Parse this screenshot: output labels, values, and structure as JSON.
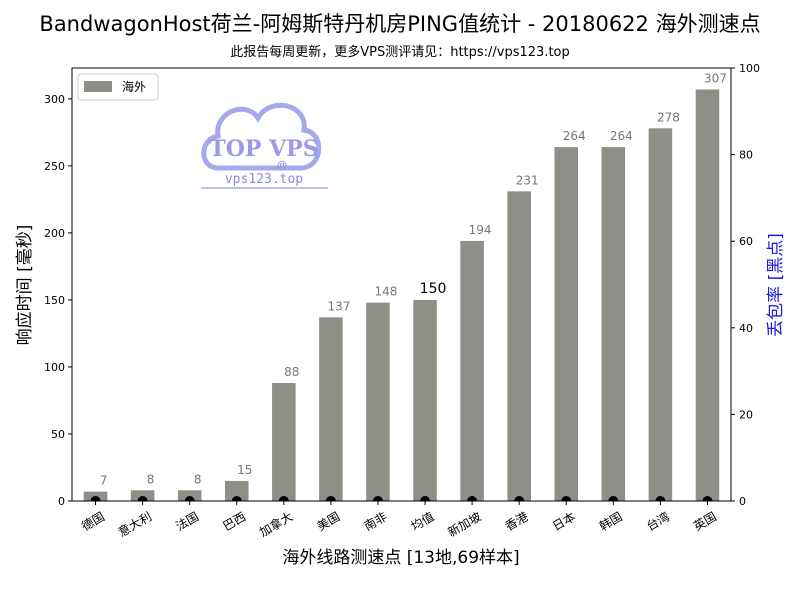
{
  "chart_data": {
    "type": "bar",
    "title": "BandwagonHost荷兰-阿姆斯特丹机房PING值统计 - 20180622 海外测速点",
    "subtitle": "此报告每周更新，更多VPS测评请见：https://vps123.top",
    "xlabel": "海外线路测速点 [13地,69样本]",
    "ylabel": "响应时间 [毫秒]",
    "ylabel_right": "丢包率 [黑点]",
    "categories": [
      "德国",
      "意大利",
      "法国",
      "巴西",
      "加拿大",
      "美国",
      "南非",
      "均值",
      "新加坡",
      "香港",
      "日本",
      "韩国",
      "台湾",
      "英国"
    ],
    "series": [
      {
        "name": "海外",
        "values": [
          7,
          8,
          8,
          15,
          88,
          137,
          148,
          150,
          194,
          231,
          264,
          264,
          278,
          307
        ],
        "color": "#8f8f87"
      }
    ],
    "packet_loss": [
      0,
      0,
      0,
      0,
      0,
      0,
      0,
      0,
      0,
      0,
      0,
      0,
      0,
      0
    ],
    "highlight_category": "均值",
    "ylim": [
      0,
      323
    ],
    "yticks": [
      0,
      50,
      100,
      150,
      200,
      250,
      300
    ],
    "ylim_right": [
      0,
      100
    ],
    "yticks_right": [
      0,
      20,
      40,
      60,
      80,
      100
    ],
    "legend_position": "top-left",
    "grid": false
  },
  "watermark": {
    "brand": "TOP VPS",
    "at": "@",
    "url": "vps123.top",
    "color": "#9a9ae8"
  }
}
